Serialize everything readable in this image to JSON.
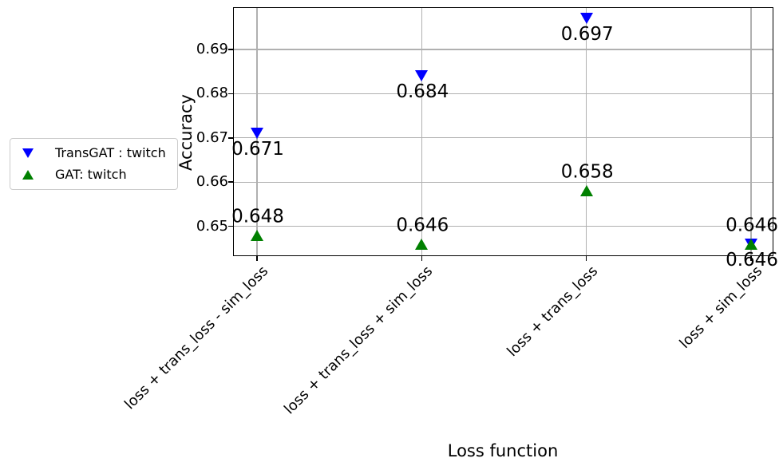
{
  "chart_data": {
    "type": "scatter",
    "title": "",
    "xlabel": "Loss function",
    "ylabel": "Accuracy",
    "categories": [
      "loss + trans_loss - sim_loss",
      "loss + trans_loss + sim_loss",
      "loss + trans_loss",
      "loss + sim_loss"
    ],
    "y_ticks": [
      "0.65",
      "0.66",
      "0.67",
      "0.68",
      "0.69"
    ],
    "ylim": [
      0.643,
      0.7
    ],
    "grid": true,
    "legend_position": "outside-left",
    "colors": {
      "transgat": "#0000ff",
      "gat": "#008000",
      "gridline": "#b0b0b0",
      "axis": "#000000",
      "legend_border": "#cccccc"
    },
    "series": [
      {
        "name": "TransGAT : twitch",
        "marker": "triangle-down-icon",
        "color": "#0000ff",
        "values": [
          0.671,
          0.684,
          0.697,
          0.646
        ],
        "point_labels": [
          "0.671",
          "0.684",
          "0.697",
          "0.646"
        ],
        "label_side": "below"
      },
      {
        "name": "GAT: twitch",
        "marker": "triangle-up-icon",
        "color": "#008000",
        "values": [
          0.648,
          0.646,
          0.658,
          0.646
        ],
        "point_labels": [
          "0.648",
          "0.646",
          "0.658",
          "0.646"
        ],
        "label_side": "above"
      }
    ]
  }
}
